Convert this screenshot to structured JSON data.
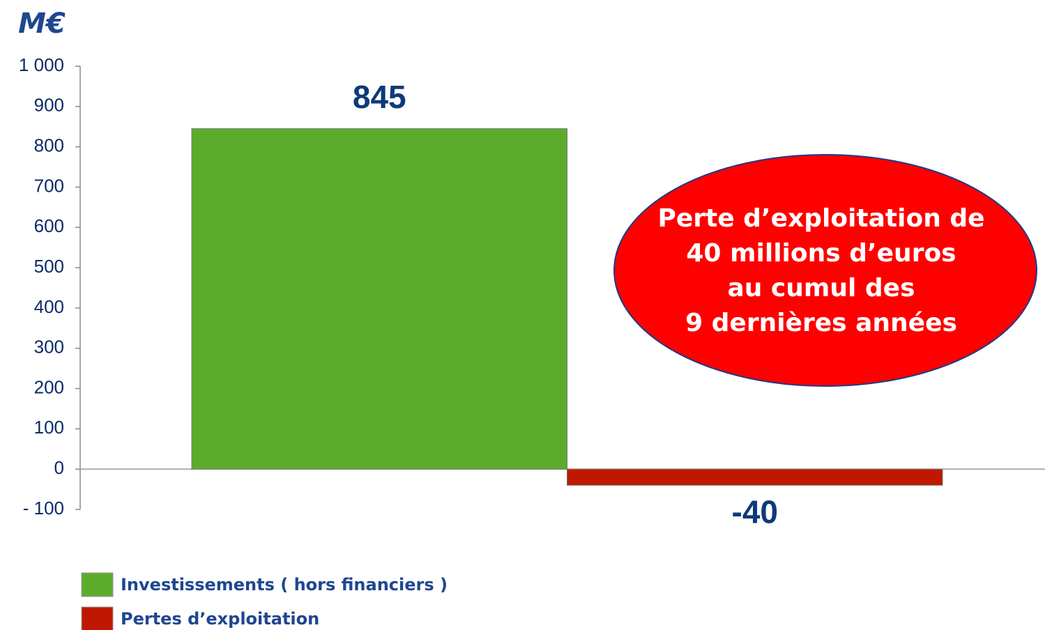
{
  "chart_data": {
    "type": "bar",
    "unit": "M€",
    "categories": [
      null
    ],
    "series": [
      {
        "name": "Investissements ( hors financiers )",
        "color": "#5cac2c",
        "values": [
          845
        ]
      },
      {
        "name": "Pertes d’exploitation",
        "color": "#c01800",
        "values": [
          -40
        ]
      }
    ],
    "ylim": [
      -100,
      1000
    ],
    "yticks": [
      {
        "value": -100,
        "label": "- 100"
      },
      0,
      100,
      200,
      300,
      400,
      500,
      600,
      700,
      800,
      900,
      {
        "value": 1000,
        "label": "1 000"
      }
    ],
    "annotation": [
      "Perte d’exploitation de",
      "40 millions d’euros",
      "au cumul des",
      "9 dernières années"
    ]
  }
}
